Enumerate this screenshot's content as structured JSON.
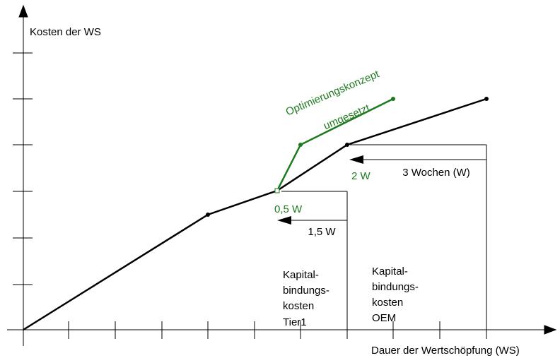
{
  "y_axis_label": "Kosten der WS",
  "x_axis_label": "Dauer der Wertschöpfung (WS)",
  "optimization_label": [
    "Optimierungskonzept",
    "umgesetzt"
  ],
  "durations": {
    "oem": "3 Wochen (W)",
    "tier1": "1,5 W",
    "oem_optimized": "2 W",
    "tier1_optimized": "0,5 W"
  },
  "cost_labels": {
    "tier1": [
      "Kapital-",
      "bindungs-",
      "kosten",
      "Tier1"
    ],
    "oem": [
      "Kapital-",
      "bindungs-",
      "kosten",
      "OEM"
    ]
  }
}
